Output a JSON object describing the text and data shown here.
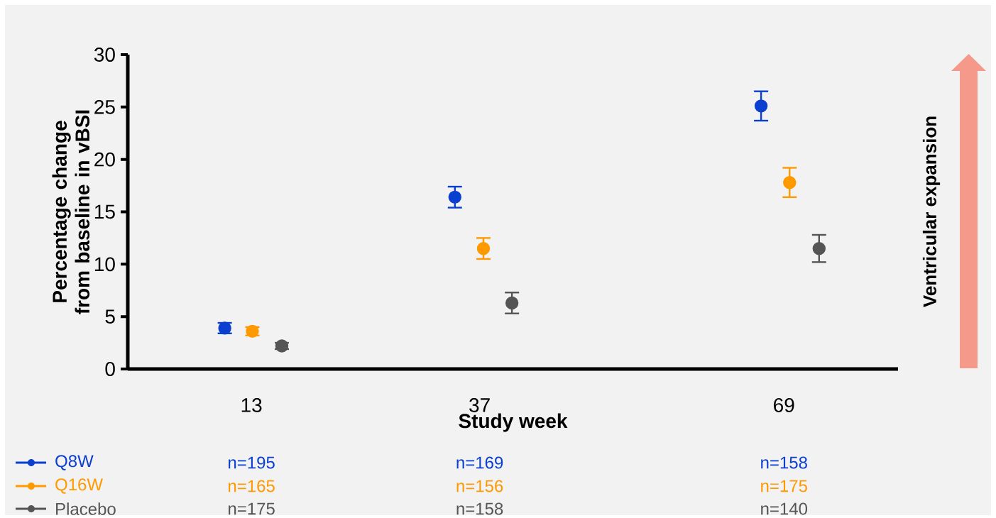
{
  "chart_data": {
    "type": "scatter",
    "xlabel": "Study week",
    "ylabel": "Percentage change from baseline in vBSI",
    "xlim": [
      0,
      81
    ],
    "xticks": [
      13,
      37,
      69
    ],
    "ylim": [
      0,
      30
    ],
    "yticks": [
      0,
      5,
      10,
      15,
      20,
      25,
      30
    ],
    "marker": "circle",
    "legend": "bottom left",
    "series": [
      {
        "name": "Q8W",
        "color": "#0b3fd0",
        "x": [
          10.2,
          34.4,
          66.6
        ],
        "values": [
          3.9,
          16.4,
          25.1
        ],
        "errors": [
          0.5,
          1.0,
          1.4
        ]
      },
      {
        "name": "Q16W",
        "color": "#ff9900",
        "x": [
          13.1,
          37.4,
          69.6
        ],
        "values": [
          3.6,
          11.5,
          17.8
        ],
        "errors": [
          0.4,
          1.0,
          1.4
        ]
      },
      {
        "name": "Placebo",
        "color": "#555555",
        "x": [
          16.2,
          40.4,
          72.7
        ],
        "values": [
          2.2,
          6.3,
          11.5
        ],
        "errors": [
          0.3,
          1.0,
          1.3
        ]
      }
    ],
    "annotations": [
      "Ventricular expansion",
      "n=195",
      "n=169",
      "n=158",
      "n=165",
      "n=156",
      "n=175",
      "n=175",
      "n=158",
      "n=140"
    ]
  }
}
